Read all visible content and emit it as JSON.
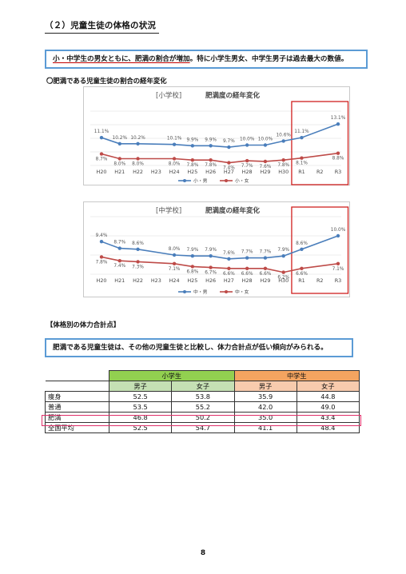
{
  "document": {
    "section_title": "（２）児童生徒の体格の状況",
    "callout1": {
      "underlined_part": "小・中学生の男女ともに、肥満の割合が増加",
      "rest": "。特に小学生男女、中学生男子は過去最大の数値。"
    },
    "sub_heading": "〇肥満である児童生徒の割合の経年変化",
    "fitness_heading": "【体格別の体力合計点】",
    "callout2": "肥満である児童生徒は、その他の児童生徒と比較し、体力合計点が低い傾向がみられる。",
    "page_number": "8"
  },
  "colors": {
    "boy_series": "#4a7ebb",
    "girl_series": "#be4b48",
    "highlight_box": "#d0211f",
    "callout_border": "#5b9bd5",
    "elementary_header": "#92d050",
    "junior_header": "#f4a460"
  },
  "chart_data": [
    {
      "type": "line",
      "school_label": "[小学校]",
      "title": "肥満度の経年変化",
      "categories": [
        "H20",
        "H21",
        "H22",
        "H23",
        "H24",
        "H25",
        "H26",
        "H27",
        "H28",
        "H29",
        "H30",
        "R1",
        "R2",
        "R3"
      ],
      "y_ticks": [
        "15.0%",
        "13.0%",
        "11.0%",
        "9.0%",
        "7.0%"
      ],
      "ylim": [
        7.0,
        15.0
      ],
      "grid": true,
      "legend_position": "bottom",
      "highlight_categories": [
        "R1",
        "R2",
        "R3"
      ],
      "series": [
        {
          "name": "小・男",
          "values": [
            11.1,
            10.2,
            10.2,
            null,
            10.1,
            9.9,
            9.9,
            9.7,
            10.0,
            10.0,
            10.6,
            11.1,
            null,
            13.1
          ],
          "labels": [
            "11.1%",
            "10.2%",
            "10.2%",
            "",
            "10.1%",
            "9.9%",
            "9.9%",
            "9.7%",
            "10.0%",
            "10.0%",
            "10.6%",
            "11.1%",
            "",
            "13.1%"
          ]
        },
        {
          "name": "小・女",
          "values": [
            8.7,
            8.0,
            8.0,
            null,
            8.0,
            7.8,
            7.8,
            7.4,
            7.7,
            7.6,
            7.8,
            8.1,
            null,
            8.8
          ],
          "labels": [
            "8.7%",
            "8.0%",
            "8.0%",
            "",
            "8.0%",
            "7.8%",
            "7.8%",
            "7.4%",
            "7.7%",
            "7.6%",
            "7.8%",
            "8.1%",
            "",
            "8.8%"
          ]
        }
      ]
    },
    {
      "type": "line",
      "school_label": "[中学校]",
      "title": "肥満度の経年変化",
      "categories": [
        "H20",
        "H21",
        "H22",
        "H23",
        "H24",
        "H25",
        "H26",
        "H27",
        "H28",
        "H29",
        "H30",
        "R1",
        "R2",
        "R3"
      ],
      "y_ticks": [
        "12.0%",
        "10.0%",
        "8.0%",
        "6.0%"
      ],
      "ylim": [
        6.0,
        12.0
      ],
      "grid": true,
      "legend_position": "bottom",
      "highlight_categories": [
        "R1",
        "R2",
        "R3"
      ],
      "series": [
        {
          "name": "中・男",
          "values": [
            9.4,
            8.7,
            8.6,
            null,
            8.0,
            7.9,
            7.9,
            7.6,
            7.7,
            7.7,
            7.9,
            8.6,
            null,
            10.0
          ],
          "labels": [
            "9.4%",
            "8.7%",
            "8.6%",
            "",
            "8.0%",
            "7.9%",
            "7.9%",
            "7.6%",
            "7.7%",
            "7.7%",
            "7.9%",
            "8.6%",
            "",
            "10.0%"
          ]
        },
        {
          "name": "中・女",
          "values": [
            7.8,
            7.4,
            7.3,
            null,
            7.1,
            6.8,
            6.7,
            6.6,
            6.6,
            6.6,
            6.2,
            6.6,
            null,
            7.1
          ],
          "labels": [
            "7.8%",
            "7.4%",
            "7.3%",
            "",
            "7.1%",
            "6.8%",
            "6.7%",
            "6.6%",
            "6.6%",
            "6.6%",
            "6.2%",
            "6.6%",
            "",
            "7.1%"
          ]
        }
      ]
    },
    {
      "type": "table",
      "groups": [
        "小学生",
        "中学生"
      ],
      "sub_headers": [
        "男子",
        "女子",
        "男子",
        "女子"
      ],
      "rows": [
        {
          "label": "痩身",
          "values": [
            "52.5",
            "53.8",
            "35.9",
            "44.8"
          ]
        },
        {
          "label": "普通",
          "values": [
            "53.5",
            "55.2",
            "42.0",
            "49.0"
          ]
        },
        {
          "label": "肥満",
          "values": [
            "46.8",
            "50.2",
            "35.0",
            "43.4"
          ]
        },
        {
          "label": "全国平均",
          "values": [
            "52.5",
            "54.7",
            "41.1",
            "48.4"
          ]
        }
      ],
      "highlighted_row": "肥満"
    }
  ]
}
